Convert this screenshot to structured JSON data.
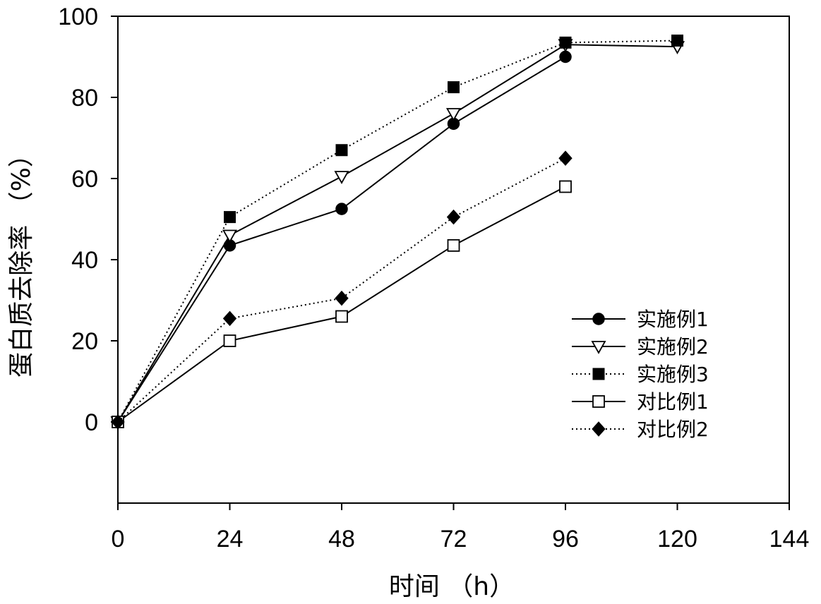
{
  "chart_data": {
    "type": "line",
    "xlabel": "时间 （h）",
    "ylabel": "蛋白质去除率 （%）",
    "xlim": [
      0,
      144
    ],
    "ylim": [
      -20,
      100
    ],
    "x_ticks": [
      0,
      24,
      48,
      72,
      96,
      120,
      144
    ],
    "y_ticks": [
      0,
      20,
      40,
      60,
      80,
      100
    ],
    "grid": false,
    "legend_position": "lower-right",
    "series": [
      {
        "name": "实施例1",
        "marker": "filled-circle",
        "line": "solid",
        "x": [
          0,
          24,
          48,
          72,
          96,
          120
        ],
        "y": [
          0,
          43.5,
          52.5,
          73.5,
          90,
          null
        ]
      },
      {
        "name": "实施例2",
        "marker": "open-triangle-down",
        "line": "solid",
        "x": [
          0,
          24,
          48,
          72,
          96,
          120
        ],
        "y": [
          0,
          46,
          60.5,
          76,
          93,
          92.5
        ]
      },
      {
        "name": "实施例3",
        "marker": "filled-square",
        "line": "dotted",
        "x": [
          0,
          24,
          48,
          72,
          96,
          120
        ],
        "y": [
          0,
          50.5,
          67,
          82.5,
          93.5,
          94
        ]
      },
      {
        "name": "对比例1",
        "marker": "open-square",
        "line": "solid",
        "x": [
          0,
          24,
          48,
          72,
          96
        ],
        "y": [
          0,
          20,
          26,
          43.5,
          58
        ]
      },
      {
        "name": "对比例2",
        "marker": "filled-diamond",
        "line": "dotted",
        "x": [
          0,
          24,
          48,
          72,
          96
        ],
        "y": [
          0,
          25.5,
          30.5,
          50.5,
          65
        ]
      }
    ]
  }
}
